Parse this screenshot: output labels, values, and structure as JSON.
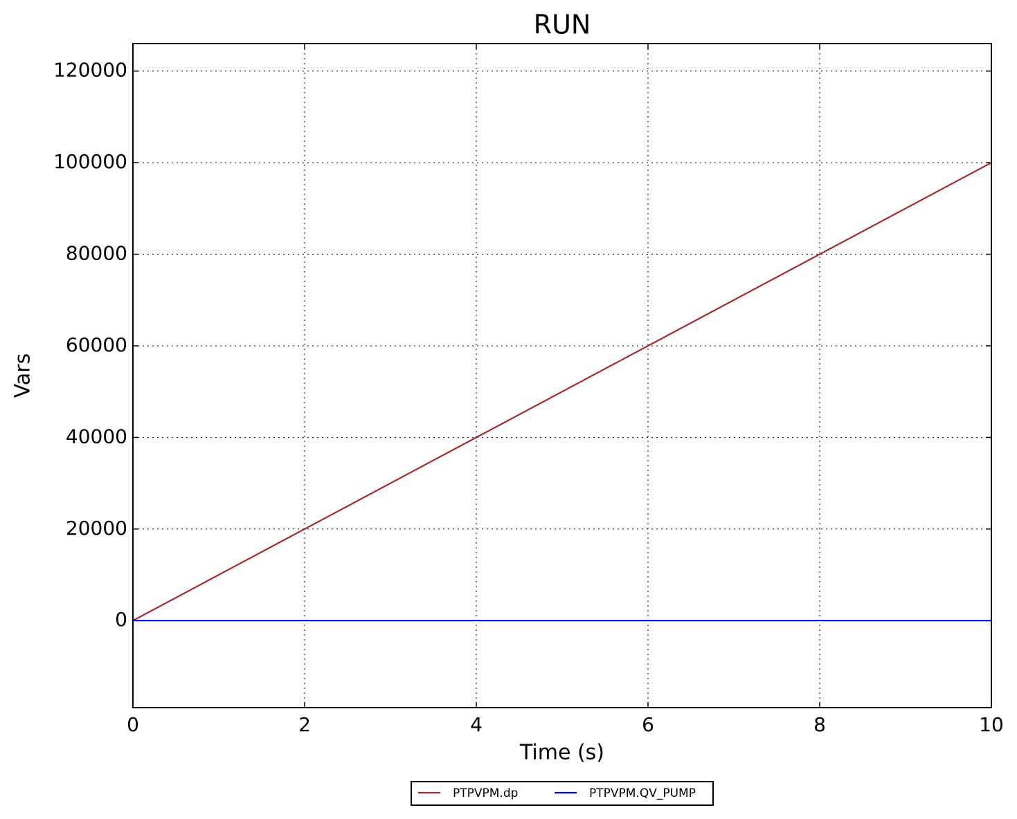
{
  "chart_data": {
    "type": "line",
    "title": "RUN",
    "xlabel": "Time (s)",
    "ylabel": "Vars",
    "x": [
      0,
      10
    ],
    "series": [
      {
        "name": "PTPVPM.dp",
        "color": "#a52a2a",
        "values": [
          0,
          100000
        ]
      },
      {
        "name": "PTPVPM.QV_PUMP",
        "color": "#0000ff",
        "values": [
          0,
          0
        ]
      }
    ],
    "xlim": [
      0,
      10
    ],
    "xticks": [
      0,
      2,
      4,
      6,
      8,
      10
    ],
    "ylim": [
      -19000,
      126000
    ],
    "yticks": [
      0,
      20000,
      40000,
      60000,
      80000,
      100000,
      120000
    ],
    "grid": true,
    "legend": "below"
  }
}
